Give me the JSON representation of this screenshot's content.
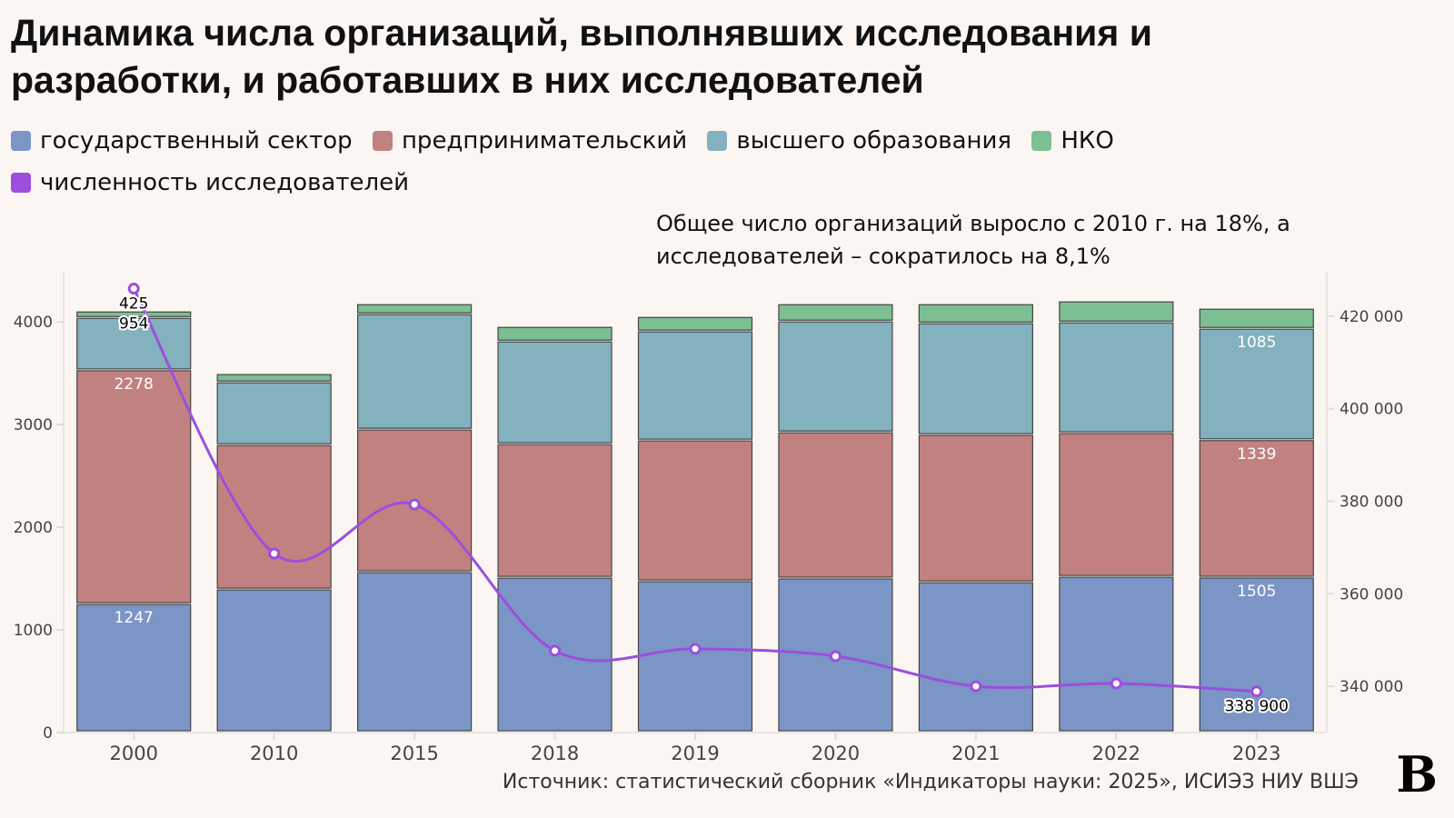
{
  "title": "Динамика числа организаций, выполнявших исследования и разработки, и работавших в них исследователей",
  "annotation": "Общее число организаций выросло с 2010 г. на 18%, а исследователей – сократилось на 8,1%",
  "source": "Источник: статистический сборник «Индикаторы науки: 2025», ИСИЭЗ НИУ ВШЭ",
  "logo": "В",
  "legend": [
    {
      "label": "государственный сектор",
      "color": "#7b95c6"
    },
    {
      "label": "предпринимательский",
      "color": "#c28181"
    },
    {
      "label": "высшего образования",
      "color": "#83b1bd"
    },
    {
      "label": "НКО",
      "color": "#7bbf93"
    },
    {
      "label": "численность исследователей",
      "color": "#9b4fdc"
    }
  ],
  "chart_data": {
    "type": "bar",
    "stacked": true,
    "categories": [
      "2000",
      "2010",
      "2015",
      "2018",
      "2019",
      "2020",
      "2021",
      "2022",
      "2023"
    ],
    "series": [
      {
        "name": "государственный сектор",
        "color": "#7b95c6",
        "values": [
          1247,
          1389,
          1558,
          1504,
          1469,
          1496,
          1460,
          1513,
          1505
        ]
      },
      {
        "name": "предпринимательский",
        "color": "#c28181",
        "values": [
          2278,
          1407,
          1389,
          1301,
          1372,
          1424,
          1434,
          1399,
          1339
        ]
      },
      {
        "name": "высшего образования",
        "color": "#83b1bd",
        "values": [
          510,
          611,
          1124,
          1000,
          1062,
          1080,
          1088,
          1079,
          1085
        ]
      },
      {
        "name": "НКО",
        "color": "#7bbf93",
        "values": [
          62,
          80,
          97,
          142,
          141,
          168,
          186,
          204,
          195
        ]
      }
    ],
    "line": {
      "name": "численность исследователей",
      "color": "#9b4fdc",
      "axis": "right",
      "values": [
        425954,
        368700,
        379300,
        347700,
        348100,
        346500,
        340000,
        340600,
        338900
      ]
    },
    "data_labels": [
      {
        "series": 0,
        "index": 0,
        "text": "1247"
      },
      {
        "series": 1,
        "index": 0,
        "text": "2278"
      },
      {
        "series": 0,
        "index": 8,
        "text": "1505"
      },
      {
        "series": 1,
        "index": 8,
        "text": "1339"
      },
      {
        "series": 2,
        "index": 8,
        "text": "1085"
      },
      {
        "line": true,
        "index": 0,
        "text": "425\n954"
      },
      {
        "line": true,
        "index": 8,
        "text": "338 900"
      }
    ],
    "ylim": [
      0,
      4480
    ],
    "y_ticks": [
      "0",
      "1000",
      "2000",
      "3000",
      "4000"
    ],
    "y_tick_values": [
      0,
      1000,
      2000,
      3000,
      4000
    ],
    "y2lim": [
      330000,
      429400
    ],
    "y2_ticks": [
      "340 000",
      "360 000",
      "380 000",
      "400 000",
      "420 000"
    ],
    "y2_tick_values": [
      340000,
      360000,
      380000,
      400000,
      420000
    ],
    "grid": false,
    "legend_position": "top-left"
  }
}
